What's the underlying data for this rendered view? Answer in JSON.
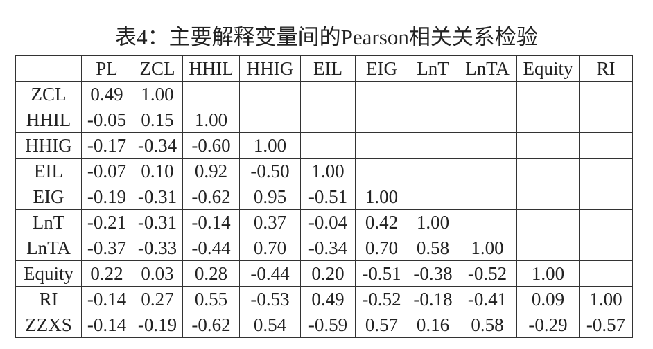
{
  "title": "表4：主要解释变量间的Pearson相关关系检验",
  "table": {
    "columns": [
      "PL",
      "ZCL",
      "HHIL",
      "HHIG",
      "EIL",
      "EIG",
      "LnT",
      "LnTA",
      "Equity",
      "RI"
    ],
    "rows": [
      {
        "label": "ZCL",
        "values": [
          "0.49",
          "1.00"
        ]
      },
      {
        "label": "HHIL",
        "values": [
          "-0.05",
          "0.15",
          "1.00"
        ]
      },
      {
        "label": "HHIG",
        "values": [
          "-0.17",
          "-0.34",
          "-0.60",
          "1.00"
        ]
      },
      {
        "label": "EIL",
        "values": [
          "-0.07",
          "0.10",
          "0.92",
          "-0.50",
          "1.00"
        ]
      },
      {
        "label": "EIG",
        "values": [
          "-0.19",
          "-0.31",
          "-0.62",
          "0.95",
          "-0.51",
          "1.00"
        ]
      },
      {
        "label": "LnT",
        "values": [
          "-0.21",
          "-0.31",
          "-0.14",
          "0.37",
          "-0.04",
          "0.42",
          "1.00"
        ]
      },
      {
        "label": "LnTA",
        "values": [
          "-0.37",
          "-0.33",
          "-0.44",
          "0.70",
          "-0.34",
          "0.70",
          "0.58",
          "1.00"
        ]
      },
      {
        "label": "Equity",
        "values": [
          "0.22",
          "0.03",
          "0.28",
          "-0.44",
          "0.20",
          "-0.51",
          "-0.38",
          "-0.52",
          "1.00"
        ]
      },
      {
        "label": "RI",
        "values": [
          "-0.14",
          "0.27",
          "0.55",
          "-0.53",
          "0.49",
          "-0.52",
          "-0.18",
          "-0.41",
          "0.09",
          "1.00"
        ]
      },
      {
        "label": "ZZXS",
        "values": [
          "-0.14",
          "-0.19",
          "-0.62",
          "0.54",
          "-0.59",
          "0.57",
          "0.16",
          "0.58",
          "-0.29",
          "-0.57"
        ]
      }
    ]
  }
}
